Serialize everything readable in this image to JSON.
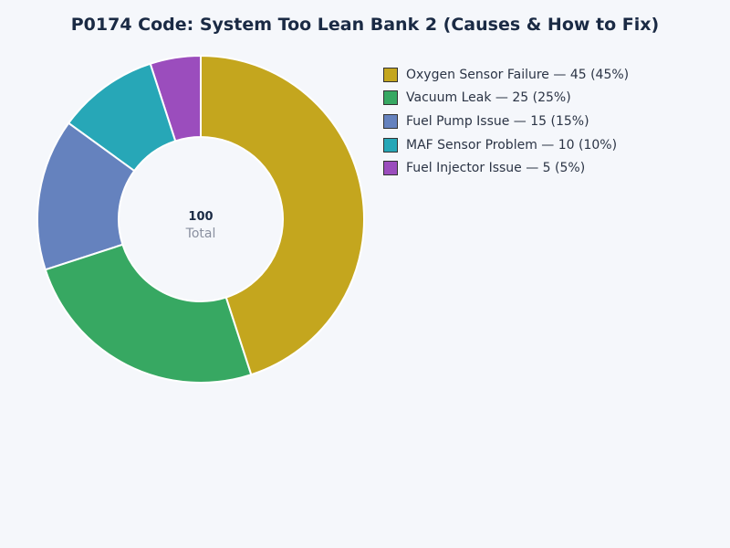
{
  "chart_data": {
    "type": "pie",
    "donut": true,
    "title": "P0174 Code: System Too Lean Bank 2 (Causes & How to Fix)",
    "center_value": "100",
    "center_label": "Total",
    "legend_position": "right",
    "slices": [
      {
        "label": "Oxygen Sensor Failure",
        "value": 45,
        "legend": "Oxygen Sensor Failure — 45 (45%)",
        "color": "#c4a61e"
      },
      {
        "label": "Vacuum Leak",
        "value": 25,
        "legend": "Vacuum Leak — 25 (25%)",
        "color": "#37a862"
      },
      {
        "label": "Fuel Pump Issue",
        "value": 15,
        "legend": "Fuel Pump Issue — 15 (15%)",
        "color": "#6582be"
      },
      {
        "label": "MAF Sensor Problem",
        "value": 10,
        "legend": "MAF Sensor Problem — 10 (10%)",
        "color": "#27a7b7"
      },
      {
        "label": "Fuel Injector Issue",
        "value": 5,
        "legend": "Fuel Injector Issue — 5 (5%)",
        "color": "#9b4dbd"
      }
    ]
  }
}
